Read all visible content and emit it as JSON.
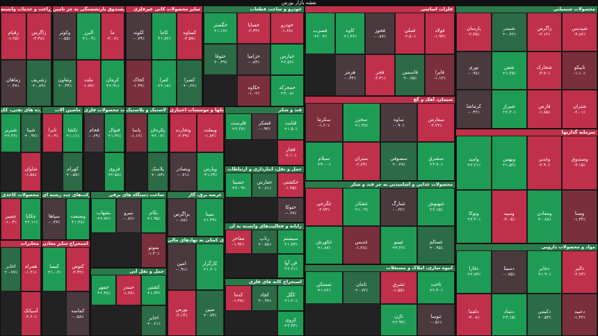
{
  "header": {
    "title": "نقشه بازار بورس"
  },
  "sectors": [
    {
      "title": "محصولات شیمیایی",
      "color": "#2b7a4b",
      "tiles": [
        {
          "name": "شپدیس",
          "change": "-۴.۸۶٪",
          "color": "#c0304a"
        },
        {
          "name": "زاگرس",
          "change": "-۳.۱۲٪",
          "color": "#c0304a"
        },
        {
          "name": "شبندر",
          "change": "+۰.۶۲٪",
          "color": "#2b6b45"
        },
        {
          "name": "پارسان",
          "change": "-۲.۴۵٪",
          "color": "#c0304a"
        },
        {
          "name": "تاپیکو",
          "change": "-۱.۱۰٪",
          "color": "#7a2f3d"
        },
        {
          "name": "شخارک",
          "change": "-۳.۷۰٪",
          "color": "#c0304a"
        },
        {
          "name": "شفن",
          "change": "+۱.۲۵٪",
          "color": "#1e9c55"
        },
        {
          "name": "نوری",
          "change": "-۰.۹۸٪",
          "color": "#4a3a3e"
        },
        {
          "name": "شتران",
          "change": "-۲.۰۱٪",
          "color": "#c0304a"
        },
        {
          "name": "فارس",
          "change": "-۱.۸۵٪",
          "color": "#c0304a"
        },
        {
          "name": "شیراز",
          "change": "+۲.۳۰٪",
          "color": "#1e9c55"
        },
        {
          "name": "کرماشا",
          "change": "-۰.۴۲٪",
          "color": "#4a3a3e"
        }
      ]
    },
    {
      "title": "سرمایه گذاریها",
      "color": "#c0304a",
      "tiles": [
        {
          "name": "وصندوق",
          "change": "-۴.۱۵٪",
          "color": "#c0304a"
        },
        {
          "name": "وغدیر",
          "change": "-۲.۹۰٪",
          "color": "#c0304a"
        },
        {
          "name": "وبهمن",
          "change": "+۱.۵۲٪",
          "color": "#1e9c55"
        },
        {
          "name": "وامید",
          "change": "+۲.۲۱٪",
          "color": "#1e9c55"
        },
        {
          "name": "وصنا",
          "change": "-۱.۳۴٪",
          "color": "#7a2f3d"
        },
        {
          "name": "ومعادن",
          "change": "+۰.۸۸٪",
          "color": "#1e9c55"
        },
        {
          "name": "وسپه",
          "change": "-۳.۰۵٪",
          "color": "#c0304a"
        },
        {
          "name": "وتوکا",
          "change": "+۳.۴۰٪",
          "color": "#1e9c55"
        }
      ]
    },
    {
      "title": "مواد و محصولات دارویی",
      "color": "#2b7a4b",
      "tiles": [
        {
          "name": "دالبر",
          "change": "-۲.۶۳٪",
          "color": "#c0304a"
        },
        {
          "name": "دجابر",
          "change": "+۱.۹۰٪",
          "color": "#1e9c55"
        },
        {
          "name": "دسینا",
          "change": "-۰.۷۵٪",
          "color": "#4a3a3e"
        },
        {
          "name": "دفارا",
          "change": "+۲.۸۴٪",
          "color": "#1e9c55"
        },
        {
          "name": "دعبید",
          "change": "-۱.۴۲٪",
          "color": "#7a2f3d"
        },
        {
          "name": "دکیمی",
          "change": "+۰.۵۳٪",
          "color": "#2b6b45"
        },
        {
          "name": "دتماد",
          "change": "+۳.۱۵٪",
          "color": "#1e9c55"
        },
        {
          "name": "دلقما",
          "change": "-۳.۰۸٪",
          "color": "#c0304a"
        }
      ]
    },
    {
      "title": "فلزات اساسی",
      "color": "#c0304a",
      "tiles": [
        {
          "name": "فولاد",
          "change": "-۱.۹۳٪",
          "color": "#c0304a"
        },
        {
          "name": "فملی",
          "change": "-۲.۵۰٪",
          "color": "#c0304a"
        },
        {
          "name": "فخوز",
          "change": "-۰.۸۷٪",
          "color": "#4a3a3e"
        },
        {
          "name": "کاوه",
          "change": "+۱.۳۶٪",
          "color": "#1e9c55"
        },
        {
          "name": "فسرب",
          "change": "+۲.۰۴٪",
          "color": "#1e9c55"
        },
        {
          "name": "فایرا",
          "change": "-۱.۱۲٪",
          "color": "#7a2f3d"
        },
        {
          "name": "فاسمین",
          "change": "+۰.۶۵٪",
          "color": "#2b6b45"
        },
        {
          "name": "فجر",
          "change": "-۳.۳۱٪",
          "color": "#c0304a"
        },
        {
          "name": "هرمز",
          "change": "-۰.۴۴٪",
          "color": "#4a3a3e"
        }
      ]
    },
    {
      "title": "سیمان، آهک و گچ",
      "color": "#c0304a",
      "tiles": [
        {
          "name": "سفارس",
          "change": "-۲.۲۲٪",
          "color": "#c0304a"
        },
        {
          "name": "ساوه",
          "change": "-۰.۹۰٪",
          "color": "#4a3a3e"
        },
        {
          "name": "سخزر",
          "change": "+۱.۴۸٪",
          "color": "#1e9c55"
        },
        {
          "name": "سکرما",
          "change": "-۱.۶۰٪",
          "color": "#7a2f3d"
        },
        {
          "name": "سشرق",
          "change": "+۲.۷۰٪",
          "color": "#1e9c55"
        },
        {
          "name": "سصوفی",
          "change": "+۰.۳۸٪",
          "color": "#2b6b45"
        },
        {
          "name": "ستران",
          "change": "-۲.۸۹٪",
          "color": "#c0304a"
        },
        {
          "name": "سیلام",
          "change": "+۳.۰۰٪",
          "color": "#1e9c55"
        }
      ]
    },
    {
      "title": "محصولات غذایی و آشامیدنی به جز قند و شکر",
      "color": "#2b7a4b",
      "tiles": [
        {
          "name": "غبهنوش",
          "change": "+۲.۱۵٪",
          "color": "#1e9c55"
        },
        {
          "name": "غمارگ",
          "change": "-۰.۶۲٪",
          "color": "#4a3a3e"
        },
        {
          "name": "غشاذر",
          "change": "+۱.۰۹٪",
          "color": "#1e9c55"
        },
        {
          "name": "غگرجی",
          "change": "-۲.۷۳٪",
          "color": "#c0304a"
        },
        {
          "name": "غسالم",
          "change": "+۰.۹۵٪",
          "color": "#2b6b45"
        },
        {
          "name": "غپینو",
          "change": "+۳.۲۲٪",
          "color": "#1e9c55"
        },
        {
          "name": "غدیس",
          "change": "-۱.۲۸٪",
          "color": "#7a2f3d"
        },
        {
          "name": "غکورش",
          "change": "+۱.۸۷٪",
          "color": "#1e9c55"
        }
      ]
    },
    {
      "title": "انبوه سازی، املاک و مستغلات",
      "color": "#2b7a4b",
      "tiles": [
        {
          "name": "ثاخت",
          "change": "+۲.۴۰٪",
          "color": "#1e9c55"
        },
        {
          "name": "ثشرق",
          "change": "-۱.۵۵٪",
          "color": "#c0304a"
        },
        {
          "name": "ثامان",
          "change": "+۰.۷۲٪",
          "color": "#2b6b45"
        },
        {
          "name": "ثمسکن",
          "change": "+۱.۶۶٪",
          "color": "#1e9c55"
        },
        {
          "name": "ثنوسا",
          "change": "-۰.۵۱٪",
          "color": "#4a3a3e"
        },
        {
          "name": "ثاژن",
          "change": "+۲.۹۴٪",
          "color": "#1e9c55"
        }
      ]
    },
    {
      "title": "خودرو و ساخت قطعات",
      "color": "#2b7a4b",
      "tiles": [
        {
          "name": "خودرو",
          "change": "-۱.۶۸٪",
          "color": "#c0304a"
        },
        {
          "name": "خساپا",
          "change": "-۲.۳۳٪",
          "color": "#c0304a"
        },
        {
          "name": "خگستر",
          "change": "+۱.۱۷٪",
          "color": "#1e9c55"
        },
        {
          "name": "خپارس",
          "change": "+۲.۵۶٪",
          "color": "#1e9c55"
        },
        {
          "name": "خزامیا",
          "change": "-۰.۸۴٪",
          "color": "#4a3a3e"
        },
        {
          "name": "ختوقا",
          "change": "+۰.۴۹٪",
          "color": "#2b6b45"
        },
        {
          "name": "خمحرکه",
          "change": "+۳.۰۸٪",
          "color": "#1e9c55"
        },
        {
          "name": "خکاوه",
          "change": "-۱.۰۲٪",
          "color": "#7a2f3d"
        }
      ]
    },
    {
      "title": "قند و شکر",
      "color": "#2b7a4b",
      "tiles": [
        {
          "name": "قثابت",
          "change": "+۱.۵۰٪",
          "color": "#1e9c55"
        },
        {
          "name": "قشکر",
          "change": "-۰.۹۳٪",
          "color": "#4a3a3e"
        },
        {
          "name": "قلرست",
          "change": "+۲.۲۷٪",
          "color": "#1e9c55"
        },
        {
          "name": "قچار",
          "change": "-۲.۱۰٪",
          "color": "#c0304a"
        }
      ]
    },
    {
      "title": "حمل و نقل، انبارداری و ارتباطات",
      "color": "#2b7a4b",
      "tiles": [
        {
          "name": "حکشتی",
          "change": "-۱.۴۵٪",
          "color": "#c0304a"
        },
        {
          "name": "حفارس",
          "change": "+۰.۸۱٪",
          "color": "#2b6b45"
        },
        {
          "name": "حسینا",
          "change": "+۲.۰۹٪",
          "color": "#1e9c55"
        },
        {
          "name": "حتوکا",
          "change": "-۰.۶۷٪",
          "color": "#4a3a3e"
        }
      ]
    },
    {
      "title": "رایانه و فعالیت‌های وابسته به آن",
      "color": "#2b7a4b",
      "tiles": [
        {
          "name": "سیستم",
          "change": "+۱.۷۳٪",
          "color": "#1e9c55"
        },
        {
          "name": "رتاپ",
          "change": "+۰.۵۸٪",
          "color": "#2b6b45"
        },
        {
          "name": "مفاخر",
          "change": "-۱.۹۲٪",
          "color": "#c0304a"
        },
        {
          "name": "فن آوا",
          "change": "+۲.۶۱٪",
          "color": "#1e9c55"
        }
      ]
    },
    {
      "title": "استخراج کانه های فلزی",
      "color": "#2b7a4b",
      "tiles": [
        {
          "name": "کگل",
          "change": "+۱.۲۰٪",
          "color": "#1e9c55"
        },
        {
          "name": "کچاد",
          "change": "+۰.۹۶٪",
          "color": "#2b6b45"
        },
        {
          "name": "کدما",
          "change": "-۱.۳۸٪",
          "color": "#c0304a"
        },
        {
          "name": "کروی",
          "change": "+۲.۴۴٪",
          "color": "#1e9c55"
        }
      ]
    },
    {
      "title": "سایر محصولات کانی غیرفلزی",
      "color": "#c0304a",
      "tiles": [
        {
          "name": "کساوه",
          "change": "-۲.۵۷٪",
          "color": "#c0304a"
        },
        {
          "name": "کاما",
          "change": "+۱.۸۲٪",
          "color": "#1e9c55"
        },
        {
          "name": "کلوند",
          "change": "-۰.۷۹٪",
          "color": "#4a3a3e"
        },
        {
          "name": "کسرا",
          "change": "+۰.۶۶٪",
          "color": "#2b6b45"
        },
        {
          "name": "کفرا",
          "change": "+۲.۱۸٪",
          "color": "#1e9c55"
        },
        {
          "name": "کخاک",
          "change": "-۱.۴۹٪",
          "color": "#7a2f3d"
        }
      ]
    },
    {
      "title": "بیمه وصندوق بازنشستگی به جز تامین",
      "color": "#c0304a",
      "tiles": [
        {
          "name": "ما",
          "change": "-۲.۰۶٪",
          "color": "#c0304a"
        },
        {
          "name": "البرز",
          "change": "+۱.۰۳٪",
          "color": "#1e9c55"
        },
        {
          "name": "وکوثر",
          "change": "-۰.۵۵٪",
          "color": "#4a3a3e"
        },
        {
          "name": "کرمان",
          "change": "+۲.۹۱٪",
          "color": "#1e9c55"
        },
        {
          "name": "ملت",
          "change": "-۱.۷۷٪",
          "color": "#c0304a"
        },
        {
          "name": "وتعاون",
          "change": "+۰.۴۴٪",
          "color": "#2b6b45"
        }
      ]
    },
    {
      "title": "زراعت و خدمات وابسته",
      "color": "#c0304a",
      "tiles": [
        {
          "name": "زاگرس",
          "change": "-۳.۴۸٪",
          "color": "#c0304a"
        },
        {
          "name": "زقیام",
          "change": "-۱.۲۵٪",
          "color": "#c0304a"
        },
        {
          "name": "زشریف",
          "change": "+۰.۸۹٪",
          "color": "#2b6b45"
        },
        {
          "name": "زماهان",
          "change": "-۰.۴۷٪",
          "color": "#4a3a3e"
        }
      ]
    },
    {
      "title": "بانکها و موسسات اعتباری",
      "color": "#c0304a",
      "tiles": [
        {
          "name": "وبملت",
          "change": "-۱.۸۴٪",
          "color": "#c0304a"
        },
        {
          "name": "وتجارت",
          "change": "-۲.۳۹٪",
          "color": "#c0304a"
        },
        {
          "name": "وپارس",
          "change": "+۱.۶۴٪",
          "color": "#1e9c55"
        },
        {
          "name": "وبصادر",
          "change": "-۰.۷۱٪",
          "color": "#4a3a3e"
        }
      ]
    },
    {
      "title": "لاستیک و پلاستیک",
      "color": "#2b7a4b",
      "tiles": [
        {
          "name": "پکرمان",
          "change": "+۲.۰۷٪",
          "color": "#1e9c55"
        },
        {
          "name": "پاسا",
          "change": "-۱.۱۶٪",
          "color": "#7a2f3d"
        },
        {
          "name": "پلاسک",
          "change": "+۰.۸۳٪",
          "color": "#2b6b45"
        }
      ]
    },
    {
      "title": "ساخت محصولات فلزی",
      "color": "#2b7a4b",
      "tiles": [
        {
          "name": "فنوال",
          "change": "+۱.۴۲٪",
          "color": "#1e9c55"
        },
        {
          "name": "فجام",
          "change": "-۰.۶۹٪",
          "color": "#4a3a3e"
        },
        {
          "name": "فروی",
          "change": "+۲.۵۸٪",
          "color": "#1e9c55"
        }
      ]
    },
    {
      "title": "ماشین آلات",
      "color": "#2b7a4b",
      "tiles": [
        {
          "name": "تکشا",
          "change": "+۱.۱۱٪",
          "color": "#1e9c55"
        },
        {
          "name": "تایرا",
          "change": "-۲.۰۳٪",
          "color": "#c0304a"
        },
        {
          "name": "کهرام",
          "change": "+۰.۵۷٪",
          "color": "#2b6b45"
        }
      ]
    },
    {
      "title": "فرآورده های نفتی، کک",
      "color": "#2b7a4b",
      "tiles": [
        {
          "name": "شپنا",
          "change": "+۰.۹۲٪",
          "color": "#2b6b45"
        },
        {
          "name": "شبریز",
          "change": "+۲.۳۶٪",
          "color": "#1e9c55"
        },
        {
          "name": "شاوان",
          "change": "-۱.۵۸٪",
          "color": "#c0304a"
        }
      ]
    },
    {
      "title": "ساخت دستگاه های برقی",
      "color": "#2b7a4b",
      "tiles": [
        {
          "name": "بکام",
          "change": "+۱.۹۵٪",
          "color": "#1e9c55"
        },
        {
          "name": "بنیرو",
          "change": "-۰.۸۲٪",
          "color": "#4a3a3e"
        },
        {
          "name": "بشهاب",
          "change": "+۲.۷۲٪",
          "color": "#1e9c55"
        },
        {
          "name": "بموتو",
          "change": "-۱.۳۰٪",
          "color": "#7a2f3d"
        }
      ]
    },
    {
      "title": "شرکت‌های چند رشته ای",
      "color": "#2b7a4b",
      "tiles": [
        {
          "name": "وصنعت",
          "change": "+۱.۲۸٪",
          "color": "#1e9c55"
        },
        {
          "name": "سپاها",
          "change": "-۰.۳۶٪",
          "color": "#4a3a3e"
        }
      ]
    },
    {
      "title": "محصولات کاغذی",
      "color": "#2b7a4b",
      "tiles": [
        {
          "name": "چکاپا",
          "change": "+۲.۱۱٪",
          "color": "#1e9c55"
        },
        {
          "name": "چفیبر",
          "change": "-۱.۰۴٪",
          "color": "#c0304a"
        }
      ]
    },
    {
      "title": "فعالیتهای کمکی به نهادهای مالی",
      "color": "#2b7a4b",
      "tiles": [
        {
          "name": "کارگزار",
          "change": "+۱.۶۰٪",
          "color": "#1e9c55"
        },
        {
          "name": "امین",
          "change": "-۰.۹۱٪",
          "color": "#4a3a3e"
        },
        {
          "name": "مبین",
          "change": "+۰.۷۴٪",
          "color": "#2b6b45"
        },
        {
          "name": "بورس",
          "change": "-۲.۱۴٪",
          "color": "#c0304a"
        }
      ]
    },
    {
      "title": "حمل و نقل آبی",
      "color": "#2b7a4b",
      "tiles": [
        {
          "name": "کشتی",
          "change": "+۱.۳۳٪",
          "color": "#1e9c55"
        },
        {
          "name": "حبندر",
          "change": "-۱.۶۷٪",
          "color": "#c0304a"
        },
        {
          "name": "خمهر",
          "change": "+۲.۴۸٪",
          "color": "#1e9c55"
        },
        {
          "name": "اخابر",
          "change": "+۰.۶۱٪",
          "color": "#2b6b45"
        }
      ]
    },
    {
      "title": "استخراج سایر معادن",
      "color": "#c0304a",
      "tiles": [
        {
          "name": "کتوس",
          "change": "-۲.۴۲٪",
          "color": "#c0304a"
        },
        {
          "name": "کیمیا",
          "change": "+۱.۰۶٪",
          "color": "#1e9c55"
        },
        {
          "name": "کماسه",
          "change": "-۰.۵۸٪",
          "color": "#4a3a3e"
        }
      ]
    },
    {
      "title": "مخابرات",
      "color": "#c0304a",
      "tiles": [
        {
          "name": "همراه",
          "change": "-۱.۲۱٪",
          "color": "#c0304a"
        },
        {
          "name": "اخابر",
          "change": "+۰.۷۷٪",
          "color": "#2b6b45"
        },
        {
          "name": "آسیاتک",
          "change": "-۲.۶۰٪",
          "color": "#c0304a"
        }
      ]
    },
    {
      "title": "عرضه برق، گاز",
      "color": "#2b7a4b",
      "tiles": [
        {
          "name": "بمپنا",
          "change": "+۱.۴۹٪",
          "color": "#1e9c55"
        },
        {
          "name": "بزاگرس",
          "change": "-۰.۸۸٪",
          "color": "#4a3a3e"
        }
      ]
    }
  ]
}
